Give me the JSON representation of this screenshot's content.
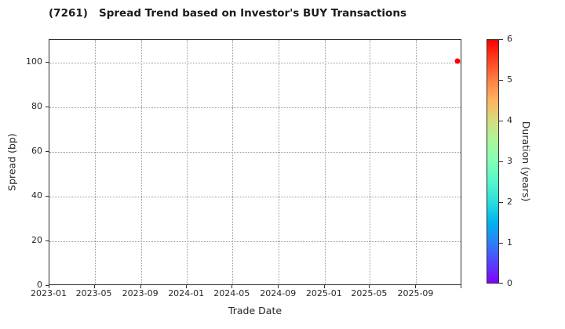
{
  "figure": {
    "background": "#ffffff",
    "text_color": "#262626",
    "spine_color": "#2f2f2f",
    "grid_color": "#9b9b9b"
  },
  "chart_data": {
    "type": "scatter",
    "title": "(7261)   Spread Trend based on Investor's BUY Transactions",
    "xlabel": "Trade Date",
    "ylabel": "Spread (bp)",
    "xlim": [
      "2023-01-01",
      "2026-01-01"
    ],
    "ylim": [
      0,
      110
    ],
    "x_tick_labels": [
      "2023-01",
      "2023-05",
      "2023-09",
      "2024-01",
      "2024-05",
      "2024-09",
      "2025-01",
      "2025-05",
      "2025-09"
    ],
    "y_ticks": [
      0,
      20,
      40,
      60,
      80,
      100
    ],
    "grid": "dotted",
    "legend": "none",
    "points": [
      {
        "date": "2025-12-20",
        "spread": 100.5,
        "duration": 6.0
      }
    ],
    "colorbar": {
      "label": "Duration (years)",
      "min": 0,
      "max": 6,
      "ticks": [
        0,
        1,
        2,
        3,
        4,
        5,
        6
      ],
      "colormap": "rainbow",
      "stops": [
        "#8000ff",
        "#5542fd",
        "#2b80f6",
        "#00b4ec",
        "#2bdddd",
        "#55f6ca",
        "#80ffb4",
        "#aaf69b",
        "#d4dd80",
        "#ffb461",
        "#ff8042",
        "#ff4221",
        "#ff0000"
      ]
    }
  }
}
